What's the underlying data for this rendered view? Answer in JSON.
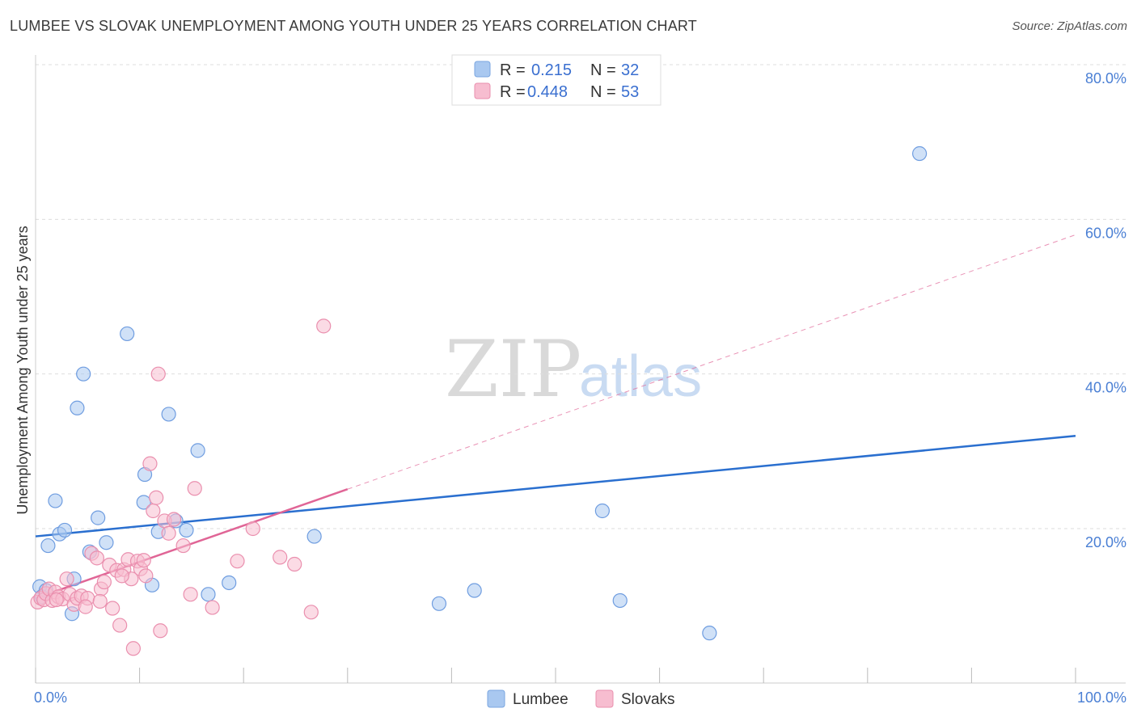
{
  "title": "LUMBEE VS SLOVAK UNEMPLOYMENT AMONG YOUTH UNDER 25 YEARS CORRELATION CHART",
  "source": "Source: ZipAtlas.com",
  "watermark": {
    "zip": "ZIP",
    "atlas": "atlas"
  },
  "chart_data": {
    "type": "scatter",
    "ylabel": "Unemployment Among Youth under 25 years",
    "xlabel": "",
    "xlim": [
      0,
      100
    ],
    "ylim": [
      0,
      80
    ],
    "x_tick_labels": [
      "0.0%",
      "100.0%"
    ],
    "y_ticks": [
      20,
      40,
      60,
      80
    ],
    "y_tick_labels": [
      "20.0%",
      "40.0%",
      "60.0%",
      "80.0%"
    ],
    "grid": true,
    "legend": [
      {
        "r_label": "R =",
        "r_value": "0.215",
        "n_label": "N =",
        "n_value": "32",
        "color": "#a9c8f0",
        "stroke": "#7aa6e0"
      },
      {
        "r_label": "R =",
        "r_value": "0.448",
        "n_label": "N =",
        "n_value": "53",
        "color": "#f7bdd0",
        "stroke": "#ea8fae"
      }
    ],
    "series": [
      {
        "name": "Lumbee",
        "color": "#a9c8f0",
        "stroke": "#6f9de0",
        "line_color": "#2a6fcf",
        "trend": {
          "x0": 0,
          "y0": 19.0,
          "x1": 100,
          "y1": 32.0,
          "dash_from": 100
        },
        "points": [
          [
            0.4,
            12.5
          ],
          [
            0.6,
            11.2
          ],
          [
            1.2,
            17.8
          ],
          [
            1.9,
            23.6
          ],
          [
            2.3,
            19.3
          ],
          [
            2.8,
            19.8
          ],
          [
            3.5,
            9.0
          ],
          [
            3.7,
            13.5
          ],
          [
            4.0,
            35.6
          ],
          [
            4.6,
            40.0
          ],
          [
            5.2,
            17.0
          ],
          [
            6.0,
            21.4
          ],
          [
            6.8,
            18.2
          ],
          [
            8.8,
            45.2
          ],
          [
            10.5,
            27.0
          ],
          [
            10.4,
            23.4
          ],
          [
            11.2,
            12.7
          ],
          [
            11.8,
            19.6
          ],
          [
            12.8,
            34.8
          ],
          [
            13.5,
            21.0
          ],
          [
            14.5,
            19.8
          ],
          [
            15.6,
            30.1
          ],
          [
            16.6,
            11.5
          ],
          [
            18.6,
            13.0
          ],
          [
            26.8,
            19.0
          ],
          [
            38.8,
            10.3
          ],
          [
            42.2,
            12.0
          ],
          [
            54.5,
            22.3
          ],
          [
            56.2,
            10.7
          ],
          [
            64.8,
            6.5
          ],
          [
            85.0,
            68.5
          ],
          [
            1.0,
            12.0
          ]
        ]
      },
      {
        "name": "Slovaks",
        "color": "#f7bdd0",
        "stroke": "#ea8fae",
        "line_color": "#e06596",
        "trend": {
          "x0": 0,
          "y0": 11.0,
          "x1": 100,
          "y1": 58.0,
          "dash_from": 30
        },
        "points": [
          [
            0.2,
            10.5
          ],
          [
            0.5,
            11.0
          ],
          [
            0.8,
            10.8
          ],
          [
            1.0,
            11.6
          ],
          [
            1.3,
            12.2
          ],
          [
            1.6,
            10.7
          ],
          [
            1.9,
            11.8
          ],
          [
            2.2,
            11.2
          ],
          [
            2.6,
            10.9
          ],
          [
            3.0,
            13.5
          ],
          [
            3.3,
            11.5
          ],
          [
            3.7,
            10.2
          ],
          [
            4.0,
            11.0
          ],
          [
            4.4,
            11.3
          ],
          [
            5.0,
            11.0
          ],
          [
            5.4,
            16.8
          ],
          [
            5.9,
            16.2
          ],
          [
            6.3,
            12.2
          ],
          [
            6.6,
            13.1
          ],
          [
            7.1,
            15.3
          ],
          [
            7.4,
            9.7
          ],
          [
            7.8,
            14.6
          ],
          [
            8.1,
            7.5
          ],
          [
            8.5,
            14.7
          ],
          [
            8.9,
            16.0
          ],
          [
            9.2,
            13.5
          ],
          [
            9.4,
            4.5
          ],
          [
            9.8,
            15.8
          ],
          [
            10.1,
            14.8
          ],
          [
            10.4,
            15.9
          ],
          [
            10.6,
            13.9
          ],
          [
            11.0,
            28.4
          ],
          [
            11.3,
            22.3
          ],
          [
            11.6,
            24.0
          ],
          [
            12.0,
            6.8
          ],
          [
            12.4,
            21.0
          ],
          [
            12.8,
            19.4
          ],
          [
            13.3,
            21.2
          ],
          [
            14.2,
            17.8
          ],
          [
            14.9,
            11.5
          ],
          [
            15.3,
            25.2
          ],
          [
            17.0,
            9.8
          ],
          [
            19.4,
            15.8
          ],
          [
            20.9,
            20.0
          ],
          [
            23.5,
            16.3
          ],
          [
            24.9,
            15.4
          ],
          [
            26.5,
            9.2
          ],
          [
            27.7,
            46.2
          ],
          [
            11.8,
            40.0
          ],
          [
            2.0,
            10.8
          ],
          [
            6.2,
            10.6
          ],
          [
            4.8,
            9.9
          ],
          [
            8.3,
            13.9
          ]
        ]
      }
    ]
  }
}
